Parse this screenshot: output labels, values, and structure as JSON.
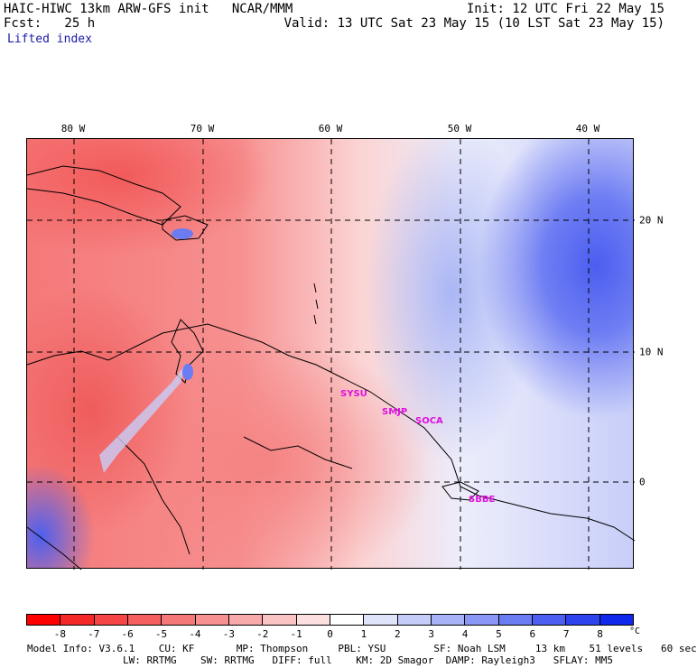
{
  "header": {
    "line1_left": "HAIC-HIWC 13km ARW-GFS init   NCAR/MMM",
    "line1_right": "Init: 12 UTC Fri 22 May 15",
    "line2_left": "Fcst:   25 h",
    "line2_right": "Valid: 13 UTC Sat 23 May 15 (10 LST Sat 23 May 15)",
    "field_name": "Lifted index"
  },
  "map": {
    "longitude_labels": [
      "80 W",
      "70 W",
      "60 W",
      "50 W",
      "40 W"
    ],
    "latitude_labels": [
      "20 N",
      "10 N",
      "0"
    ],
    "station_labels": [
      "SYSU",
      "SMJP",
      "SOCA",
      "SBBE"
    ]
  },
  "colorbar": {
    "unit": "°C",
    "tick_labels": [
      "-8",
      "-7",
      "-6",
      "-5",
      "-4",
      "-3",
      "-2",
      "-1",
      "0",
      "1",
      "2",
      "3",
      "4",
      "5",
      "6",
      "7",
      "8"
    ],
    "colors": [
      "#ff0000",
      "#f52828",
      "#f54545",
      "#f55f5f",
      "#f57878",
      "#f79090",
      "#f8aaaa",
      "#fac4c4",
      "#fce0e0",
      "#ffffff",
      "#e0e4fb",
      "#c6ccf8",
      "#a8b2f6",
      "#8a97f4",
      "#6b7bf2",
      "#4c5ff0",
      "#2e43ee",
      "#1028ec"
    ]
  },
  "footer": {
    "line1": "Model Info: V3.6.1    CU: KF       MP: Thompson     PBL: YSU        SF: Noah LSM     13 km    51 levels   60 sec",
    "line2": "                LW: RRTMG    SW: RRTMG   DIFF: full    KM: 2D Smagor  DAMP: Rayleigh3   SFLAY: MM5"
  }
}
